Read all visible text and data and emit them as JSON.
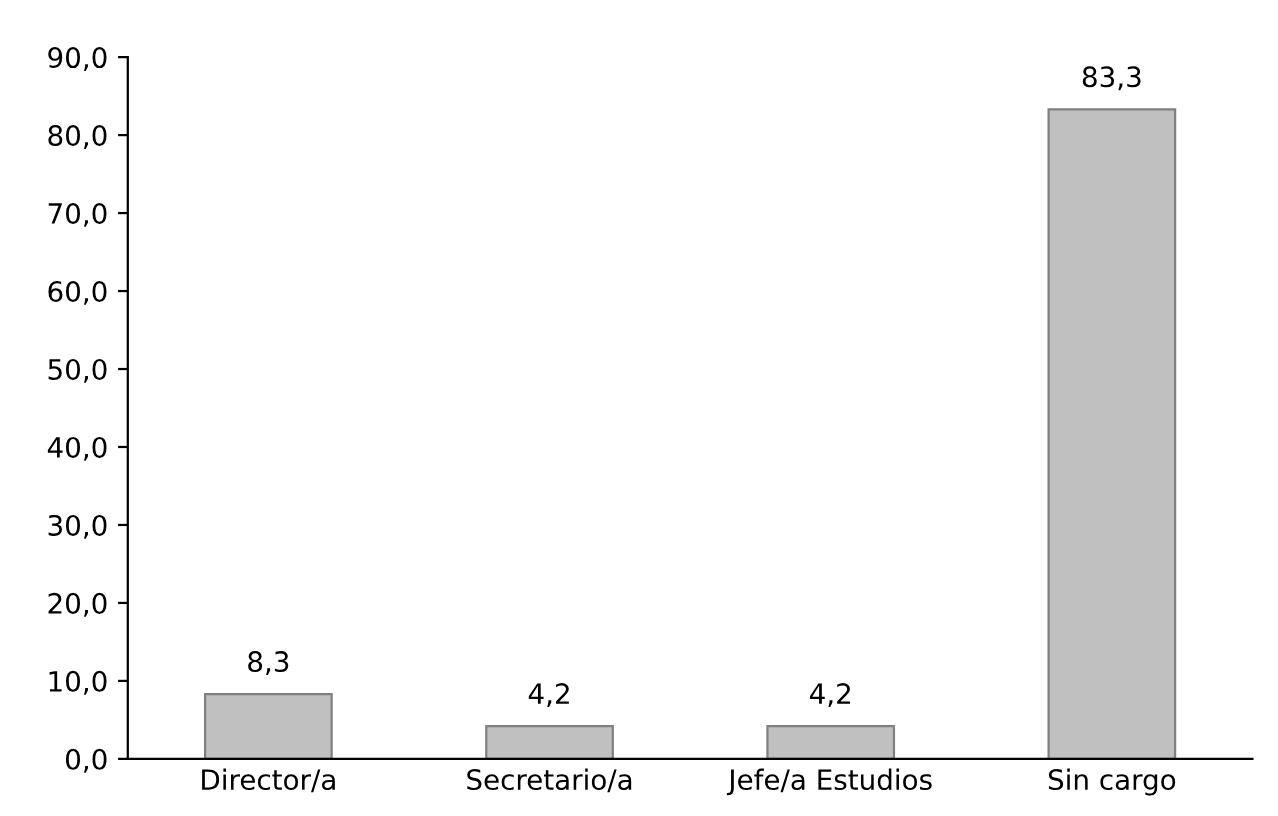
{
  "chart_data": {
    "type": "bar",
    "categories": [
      "Director/a",
      "Secretario/a",
      "Jefe/a Estudios",
      "Sin cargo"
    ],
    "values": [
      8.3,
      4.2,
      4.2,
      83.3
    ],
    "value_labels": [
      "8,3",
      "4,2",
      "4,2",
      "83,3"
    ],
    "color": "#c0c0c0",
    "ylim": [
      0,
      90
    ],
    "yticks": [
      {
        "value": 0,
        "label": "0,0"
      },
      {
        "value": 10,
        "label": "10,0"
      },
      {
        "value": 20,
        "label": "20,0"
      },
      {
        "value": 30,
        "label": "30,0"
      },
      {
        "value": 40,
        "label": "40,0"
      },
      {
        "value": 50,
        "label": "50,0"
      },
      {
        "value": 60,
        "label": "60,0"
      },
      {
        "value": 70,
        "label": "70,0"
      },
      {
        "value": 80,
        "label": "80,0"
      },
      {
        "value": 90,
        "label": "90,0"
      }
    ],
    "grid": false,
    "legend": false
  }
}
